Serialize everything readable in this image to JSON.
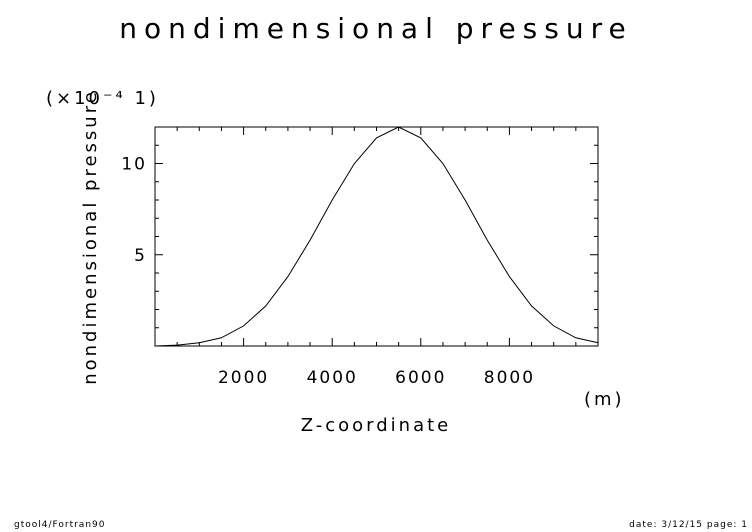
{
  "chart_data": {
    "type": "line",
    "title": "nondimensional pressure",
    "xlabel": "Z-coordinate",
    "xunit": "(m)",
    "ylabel": "nondimensional pressure",
    "yscale_label": "(×10⁻⁴ 1)",
    "xlim": [
      0,
      10000
    ],
    "ylim": [
      0,
      12
    ],
    "xticks": [
      2000,
      4000,
      6000,
      8000
    ],
    "yticks": [
      5,
      10
    ],
    "grid": false,
    "series": [
      {
        "x": [
          0,
          500,
          1000,
          1500,
          2000,
          2500,
          3000,
          3500,
          4000,
          4500,
          5000,
          5500,
          6000,
          6500,
          7000,
          7500,
          8000,
          8500,
          9000,
          9500,
          10000
        ],
        "values": [
          0.0,
          0.05,
          0.18,
          0.45,
          1.1,
          2.2,
          3.8,
          5.8,
          8.0,
          10.0,
          11.4,
          12.0,
          11.4,
          10.0,
          8.0,
          5.8,
          3.8,
          2.2,
          1.1,
          0.45,
          0.18
        ]
      }
    ]
  },
  "footer": {
    "left": "gtool4/Fortran90",
    "right": "date: 3/12/15 page: 1"
  }
}
